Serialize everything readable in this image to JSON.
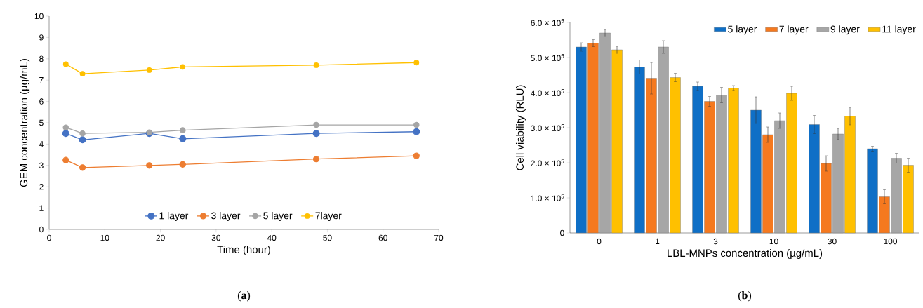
{
  "chart_data": [
    {
      "type": "line",
      "xlabel": "Time (hour)",
      "ylabel": "GEM concentration (µg/mL)",
      "x": [
        3,
        6,
        18,
        24,
        48,
        66
      ],
      "xlim": [
        0,
        70
      ],
      "xticks": [
        0,
        10,
        20,
        30,
        40,
        50,
        60,
        70
      ],
      "ylim": [
        0,
        10
      ],
      "yticks": [
        0,
        1,
        2,
        3,
        4,
        5,
        6,
        7,
        8,
        9,
        10
      ],
      "marker": "circle",
      "legend": "bottom",
      "grid": false,
      "annotations": [
        "(**a**)"
      ],
      "series": [
        {
          "name": "1 layer",
          "color": "#4472c4",
          "values": [
            4.5,
            4.2,
            4.5,
            4.25,
            4.5,
            4.58
          ]
        },
        {
          "name": "3 layer",
          "color": "#ed7d31",
          "values": [
            3.25,
            2.9,
            3.0,
            3.05,
            3.3,
            3.45
          ]
        },
        {
          "name": "5 layer",
          "color": "#a5a5a5",
          "values": [
            4.78,
            4.5,
            4.55,
            4.65,
            4.9,
            4.9
          ]
        },
        {
          "name": "7layer",
          "color": "#ffc000",
          "values": [
            7.75,
            7.3,
            7.47,
            7.62,
            7.7,
            7.82
          ]
        }
      ]
    },
    {
      "type": "bar",
      "xlabel": "LBL-MNPs concentration (µg/mL)",
      "ylabel": "Cell viability (RLU)",
      "categories": [
        "0",
        "1",
        "3",
        "10",
        "30",
        "100"
      ],
      "ylim": [
        0,
        600000
      ],
      "yticks": [
        0,
        {
          "value": 100000,
          "label": "1.0 × 10$^{5}$"
        },
        {
          "value": 200000,
          "label": "2.0 × 10$^{5}$"
        },
        {
          "value": 300000,
          "label": "3.0 × 10$^{5}$"
        },
        {
          "value": 400000,
          "label": "4.0 × 10$^{5}$"
        },
        {
          "value": 500000,
          "label": "5.0 × 10$^{5}$"
        },
        {
          "value": 600000,
          "label": "6.0 × 10$^{5}$"
        }
      ],
      "legend": "top right",
      "grid": false,
      "annotations": [
        "(**b**)"
      ],
      "series": [
        {
          "name": "5 layer",
          "color": "#0f6fc6",
          "values": [
            530000,
            473000,
            418000,
            350000,
            309000,
            240000
          ],
          "errors": [
            12000,
            20000,
            12000,
            38000,
            26000,
            7000
          ]
        },
        {
          "name": "7 layer",
          "color": "#f5791f",
          "values": [
            541000,
            441000,
            375000,
            280000,
            198000,
            103000
          ],
          "errors": [
            10000,
            45000,
            14000,
            22000,
            22000,
            20000
          ]
        },
        {
          "name": "9 layer",
          "color": "#a6a6a6",
          "values": [
            570000,
            530000,
            393000,
            320000,
            282000,
            213000
          ],
          "errors": [
            10000,
            18000,
            22000,
            22000,
            16000,
            14000
          ]
        },
        {
          "name": "11 layer",
          "color": "#ffc000",
          "values": [
            522000,
            443000,
            413000,
            398000,
            333000,
            193000
          ],
          "errors": [
            10000,
            12000,
            7000,
            20000,
            25000,
            20000
          ]
        }
      ]
    }
  ]
}
